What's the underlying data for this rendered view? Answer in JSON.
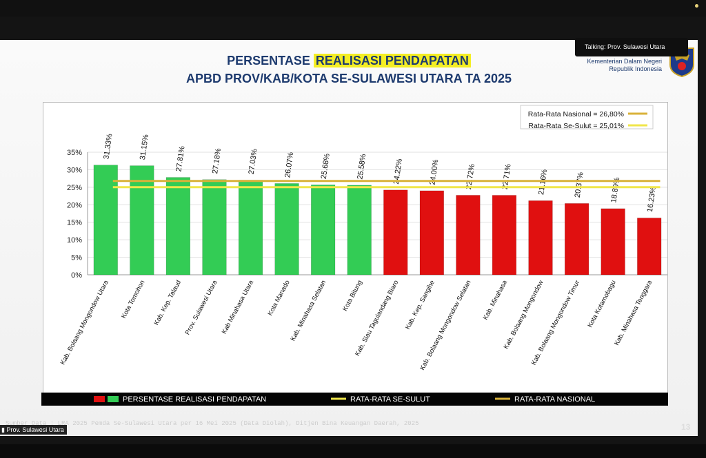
{
  "meeting": {
    "talking_label": "Talking: Prov. Sulawesi Utara",
    "speaker_label": "Prov. Sulawesi Utara",
    "page_number": "13"
  },
  "slide": {
    "title_prefix": "PERSENTASE ",
    "title_highlight": "REALISASI PENDAPATAN",
    "subtitle": "APBD PROV/KAB/KOTA SE-SULAWESI UTARA TA 2025",
    "logo_line1": "Kementerian Dalam Negeri",
    "logo_line2": "Republik Indonesia",
    "source": "Sumber Data : LRA 2025 Pemda Se-Sulawesi Utara per 16 Mei 2025 (Data Diolah), Ditjen Bina Keuangan Daerah, 2025"
  },
  "chart_data": {
    "type": "bar",
    "title": "PERSENTASE REALISASI PENDAPATAN APBD PROV/KAB/KOTA SE-SULAWESI UTARA TA 2025",
    "categories": [
      "Kab. Bolaang Mongondow Utara",
      "Kota Tomohon",
      "Kab. Kep. Talaud",
      "Prov. Sulawesi Utara",
      "Kab Minahasa Utara",
      "Kota Manado",
      "Kab. Minahasa Selatan",
      "Kota Bitung",
      "Kab. Siau Tagulandang Biaro",
      "Kab. Kep. Sangihe",
      "Kab. Bolaang Mongondow Selatan",
      "Kab. Minahasa",
      "Kab. Bolaang Mongondow",
      "Kab. Bolaang Mongondow Timur",
      "Kota Kotamobagu",
      "Kab. Minahasa Tenggara"
    ],
    "values": [
      31.33,
      31.15,
      27.81,
      27.18,
      27.03,
      26.07,
      25.68,
      25.58,
      24.22,
      24.0,
      22.72,
      22.71,
      21.16,
      20.37,
      18.89,
      16.23
    ],
    "value_labels": [
      "31.33%",
      "31.15%",
      "27.81%",
      "27.18%",
      "27.03%",
      "26.07%",
      "25.68%",
      "25.58%",
      "24.22%",
      "24.00%",
      "22.72%",
      "22.71%",
      "21.16%",
      "20.37%",
      "18.89%",
      "16.23%"
    ],
    "yticks": [
      "0%",
      "5%",
      "10%",
      "15%",
      "20%",
      "25%",
      "30%",
      "35%"
    ],
    "ylim": [
      0,
      35
    ],
    "reference_lines": [
      {
        "name": "Rata-Rata Nasional",
        "value": 26.8,
        "label": "Rata-Rata Nasional = 26,80%",
        "color": "#d9b23a"
      },
      {
        "name": "Rata-Rata Se-Sulut",
        "value": 25.01,
        "label": "Rata-Rata Se-Sulut = 25,01%",
        "color": "#f0e64a"
      }
    ],
    "above_color": "#33cc55",
    "below_color": "#e01010",
    "legend": {
      "bars": "PERSENTASE REALISASI PENDAPATAN",
      "sulut": "RATA-RATA SE-SULUT",
      "nasional": "RATA-RATA NASIONAL"
    }
  }
}
